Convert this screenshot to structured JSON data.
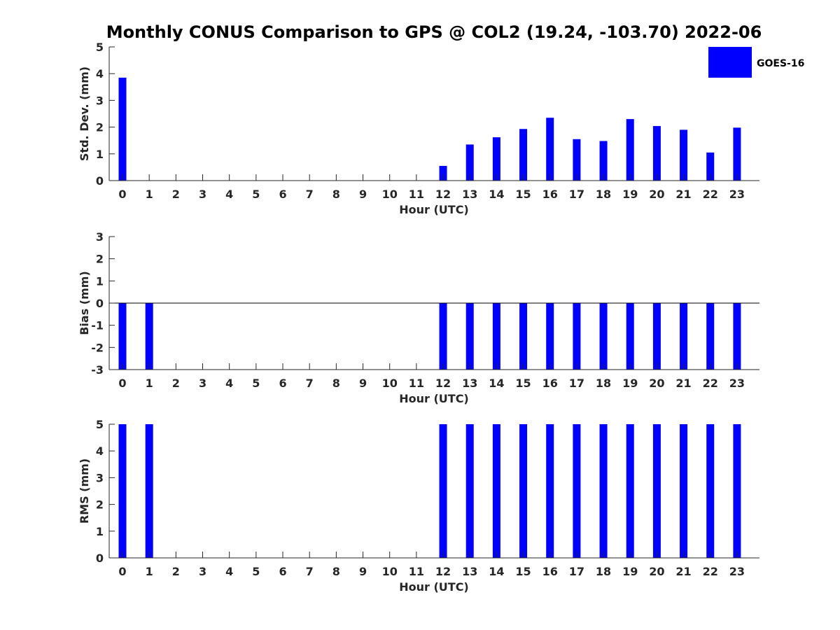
{
  "chart_data": {
    "title": "Monthly CONUS Comparison to GPS @ COL2 (19.24, -103.70) 2022-06",
    "legend": {
      "label": "GOES-16",
      "color": "#0000ff",
      "placement": "top-right"
    },
    "panels": [
      {
        "type": "bar",
        "name": "std",
        "ylabel": "Std. Dev. (mm)",
        "xlabel": "Hour (UTC)",
        "ylim": [
          0,
          5
        ],
        "yticks": [
          0,
          1,
          2,
          3,
          4,
          5
        ],
        "categories": [
          "0",
          "1",
          "2",
          "3",
          "4",
          "5",
          "6",
          "7",
          "8",
          "9",
          "10",
          "11",
          "12",
          "13",
          "14",
          "15",
          "16",
          "17",
          "18",
          "19",
          "20",
          "21",
          "22",
          "23"
        ],
        "values": [
          3.85,
          null,
          null,
          null,
          null,
          null,
          null,
          null,
          null,
          null,
          null,
          null,
          0.55,
          1.35,
          1.62,
          1.93,
          2.35,
          1.55,
          1.48,
          2.3,
          2.04,
          1.9,
          1.05,
          1.98
        ]
      },
      {
        "type": "bar",
        "name": "bias",
        "ylabel": "Bias (mm)",
        "xlabel": "Hour (UTC)",
        "ylim": [
          -3,
          3
        ],
        "yticks": [
          -3,
          -2,
          -1,
          0,
          1,
          2,
          3
        ],
        "categories": [
          "0",
          "1",
          "2",
          "3",
          "4",
          "5",
          "6",
          "7",
          "8",
          "9",
          "10",
          "11",
          "12",
          "13",
          "14",
          "15",
          "16",
          "17",
          "18",
          "19",
          "20",
          "21",
          "22",
          "23"
        ],
        "values": [
          -3,
          -3,
          null,
          null,
          null,
          null,
          null,
          null,
          null,
          null,
          null,
          null,
          -3,
          -3,
          -3,
          -3,
          -3,
          -3,
          -3,
          -3,
          -3,
          -3,
          -3,
          -3
        ],
        "zero_line": true
      },
      {
        "type": "bar",
        "name": "rms",
        "ylabel": "RMS (mm)",
        "xlabel": "Hour (UTC)",
        "ylim": [
          0,
          5
        ],
        "yticks": [
          0,
          1,
          2,
          3,
          4,
          5
        ],
        "categories": [
          "0",
          "1",
          "2",
          "3",
          "4",
          "5",
          "6",
          "7",
          "8",
          "9",
          "10",
          "11",
          "12",
          "13",
          "14",
          "15",
          "16",
          "17",
          "18",
          "19",
          "20",
          "21",
          "22",
          "23"
        ],
        "values": [
          5,
          5,
          null,
          null,
          null,
          null,
          null,
          null,
          null,
          null,
          null,
          null,
          5,
          5,
          5,
          5,
          5,
          5,
          5,
          5,
          5,
          5,
          5,
          5
        ]
      }
    ]
  }
}
